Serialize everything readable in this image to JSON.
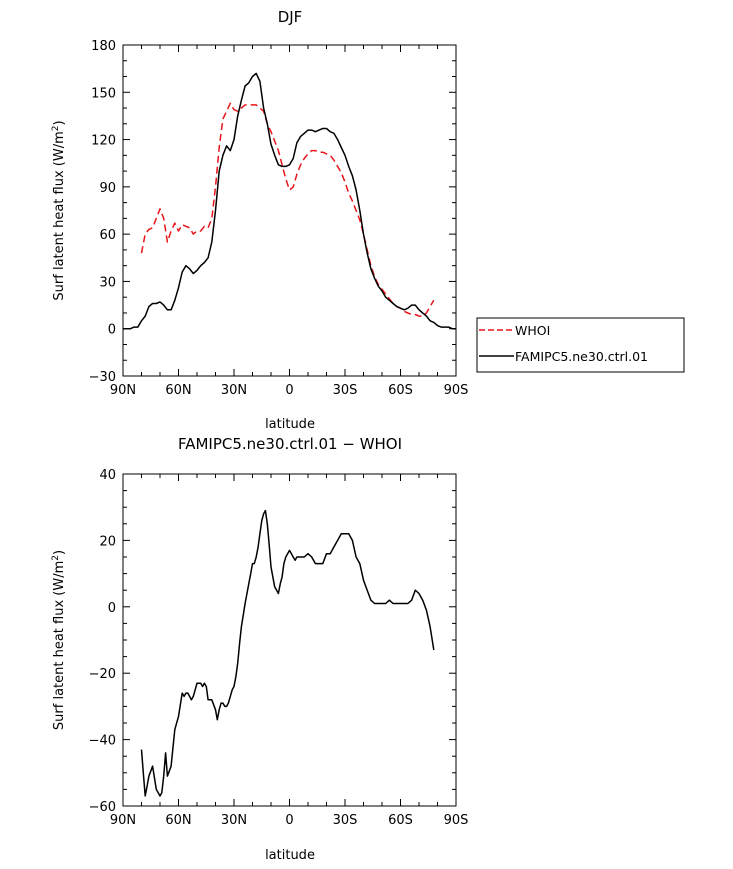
{
  "chart_data": [
    {
      "type": "line",
      "title": "DJF",
      "xlabel": "latitude",
      "ylabel": "Surf latent heat flux (W/m",
      "ylabel_sup": "2",
      "ylabel_close": ")",
      "xlim": [
        90,
        -90
      ],
      "ylim": [
        -30,
        180
      ],
      "xticks": [
        {
          "value": 90,
          "label": "90N"
        },
        {
          "value": 60,
          "label": "60N"
        },
        {
          "value": 30,
          "label": "30N"
        },
        {
          "value": 0,
          "label": "0"
        },
        {
          "value": -30,
          "label": "30S"
        },
        {
          "value": -60,
          "label": "60S"
        },
        {
          "value": -90,
          "label": "90S"
        }
      ],
      "yticks": [
        {
          "value": 180,
          "label": "180"
        },
        {
          "value": 150,
          "label": "150"
        },
        {
          "value": 120,
          "label": "120"
        },
        {
          "value": 90,
          "label": "90"
        },
        {
          "value": 60,
          "label": "60"
        },
        {
          "value": 30,
          "label": "30"
        },
        {
          "value": 0,
          "label": "0"
        },
        {
          "value": -30,
          "label": "−30"
        }
      ],
      "legend": {
        "placement": "right",
        "entries": [
          {
            "label": "WHOI",
            "color": "#e8151b",
            "dash": true
          },
          {
            "label": "FAMIPC5.ne30.ctrl.01",
            "color": "#000000",
            "dash": false
          }
        ]
      },
      "series": [
        {
          "name": "WHOI",
          "color": "#e8151b",
          "dash": true,
          "x": [
            80,
            78,
            76,
            74,
            72,
            70,
            68,
            66,
            64,
            62,
            60,
            58,
            56,
            54,
            52,
            50,
            48,
            46,
            44,
            42,
            40,
            38,
            36,
            34,
            32,
            30,
            28,
            26,
            24,
            22,
            20,
            18,
            16,
            14,
            12,
            10,
            8,
            6,
            4,
            2,
            0,
            -2,
            -4,
            -6,
            -8,
            -10,
            -12,
            -14,
            -16,
            -18,
            -20,
            -22,
            -24,
            -26,
            -28,
            -30,
            -32,
            -34,
            -36,
            -38,
            -40,
            -42,
            -44,
            -46,
            -48,
            -50,
            -52,
            -54,
            -56,
            -58,
            -60,
            -62,
            -64,
            -66,
            -68,
            -70,
            -72,
            -74,
            -76,
            -78
          ],
          "values": [
            48,
            60,
            63,
            64,
            70,
            76,
            70,
            55,
            62,
            67,
            62,
            66,
            65,
            64,
            60,
            62,
            62,
            65,
            64,
            70,
            90,
            115,
            133,
            138,
            143,
            139,
            138,
            140,
            142,
            142,
            142,
            142,
            140,
            138,
            130,
            125,
            119,
            113,
            104,
            95,
            88,
            90,
            98,
            104,
            108,
            111,
            113,
            113,
            112,
            112,
            111,
            110,
            107,
            103,
            99,
            93,
            86,
            81,
            75,
            69,
            60,
            50,
            40,
            33,
            28,
            25,
            22,
            19,
            16,
            14,
            13,
            11,
            10,
            9,
            9,
            8,
            8,
            10,
            14,
            18
          ]
        },
        {
          "name": "FAMIPC5.ne30.ctrl.01",
          "color": "#000000",
          "dash": false,
          "x": [
            90,
            88,
            86,
            84,
            82,
            80,
            78,
            76,
            74,
            72,
            70,
            68,
            66,
            64,
            62,
            60,
            58,
            56,
            54,
            52,
            50,
            48,
            46,
            44,
            42,
            40,
            38,
            36,
            34,
            32,
            30,
            28,
            26,
            24,
            22,
            20,
            18,
            16,
            14,
            12,
            10,
            8,
            6,
            4,
            2,
            0,
            -2,
            -4,
            -6,
            -8,
            -10,
            -12,
            -14,
            -16,
            -18,
            -20,
            -22,
            -24,
            -26,
            -28,
            -30,
            -32,
            -34,
            -36,
            -38,
            -40,
            -42,
            -44,
            -46,
            -48,
            -50,
            -52,
            -54,
            -56,
            -58,
            -60,
            -62,
            -64,
            -66,
            -68,
            -70,
            -72,
            -74,
            -76,
            -78,
            -80,
            -82,
            -84,
            -86,
            -88,
            -90
          ],
          "values": [
            0,
            0,
            0,
            1,
            1,
            5,
            8,
            14,
            16,
            16,
            17,
            15,
            12,
            12,
            18,
            26,
            36,
            40,
            38,
            35,
            37,
            40,
            42,
            45,
            55,
            75,
            100,
            110,
            116,
            113,
            120,
            135,
            145,
            154,
            156,
            160,
            162,
            157,
            140,
            130,
            117,
            110,
            104,
            103,
            103,
            104,
            108,
            118,
            122,
            124,
            126,
            126,
            125,
            126,
            127,
            127,
            125,
            124,
            120,
            115,
            110,
            103,
            97,
            88,
            75,
            60,
            48,
            38,
            32,
            27,
            24,
            20,
            18,
            16,
            14,
            13,
            12,
            13,
            15,
            15,
            12,
            10,
            8,
            5,
            4,
            2,
            1,
            1,
            1,
            0,
            0
          ]
        }
      ]
    },
    {
      "type": "line",
      "title": "FAMIPC5.ne30.ctrl.01 − WHOI",
      "xlabel": "latitude",
      "ylabel": "Surf latent heat flux (W/m",
      "ylabel_sup": "2",
      "ylabel_close": ")",
      "xlim": [
        90,
        -90
      ],
      "ylim": [
        -60,
        40
      ],
      "xticks": [
        {
          "value": 90,
          "label": "90N"
        },
        {
          "value": 60,
          "label": "60N"
        },
        {
          "value": 30,
          "label": "30N"
        },
        {
          "value": 0,
          "label": "0"
        },
        {
          "value": -30,
          "label": "30S"
        },
        {
          "value": -60,
          "label": "60S"
        },
        {
          "value": -90,
          "label": "90S"
        }
      ],
      "yticks": [
        {
          "value": 40,
          "label": "40"
        },
        {
          "value": 20,
          "label": "20"
        },
        {
          "value": 0,
          "label": "0"
        },
        {
          "value": -20,
          "label": "−20"
        },
        {
          "value": -40,
          "label": "−40"
        },
        {
          "value": -60,
          "label": "−60"
        }
      ],
      "series": [
        {
          "color": "#000000",
          "dash": false,
          "x": [
            80,
            79,
            78,
            77,
            76,
            74,
            72,
            71,
            70,
            69,
            68,
            67,
            66,
            64,
            62,
            60,
            58,
            57,
            56,
            55,
            54,
            53,
            52,
            50,
            48,
            47,
            46,
            45,
            44,
            43,
            42,
            40,
            39,
            38,
            37,
            36,
            35,
            34,
            33,
            32,
            31,
            30,
            29,
            28,
            27,
            26,
            24,
            22,
            21,
            20,
            19,
            18,
            17,
            16,
            15,
            14,
            13,
            12,
            11,
            10,
            8,
            7,
            6,
            5,
            4,
            3,
            2,
            0,
            -1,
            -2,
            -3,
            -4,
            -5,
            -6,
            -8,
            -10,
            -12,
            -14,
            -16,
            -18,
            -20,
            -22,
            -24,
            -26,
            -28,
            -30,
            -32,
            -34,
            -36,
            -38,
            -40,
            -42,
            -44,
            -46,
            -48,
            -50,
            -52,
            -54,
            -56,
            -58,
            -60,
            -62,
            -64,
            -66,
            -68,
            -70,
            -72,
            -74,
            -76,
            -78
          ],
          "values": [
            -43,
            -50,
            -57,
            -54,
            -51,
            -48,
            -55,
            -56,
            -57,
            -56,
            -51,
            -44,
            -51,
            -48,
            -37,
            -33,
            -26,
            -27,
            -26,
            -26,
            -27,
            -28,
            -27,
            -23,
            -23,
            -24,
            -23,
            -24,
            -28,
            -28,
            -28,
            -31,
            -34,
            -31,
            -29,
            -29,
            -30,
            -30,
            -29,
            -27,
            -25,
            -24,
            -21,
            -17,
            -11,
            -6,
            1,
            7,
            10,
            13,
            13,
            15,
            18,
            22,
            26,
            28,
            29,
            25,
            19,
            12,
            6,
            5,
            4,
            7,
            9,
            13,
            15,
            17,
            16,
            15,
            14,
            15,
            15,
            15,
            15,
            16,
            15,
            13,
            13,
            13,
            16,
            16,
            18,
            20,
            22,
            22,
            22,
            20,
            15,
            13,
            8,
            5,
            2,
            1,
            1,
            1,
            1,
            2,
            1,
            1,
            1,
            1,
            1,
            2,
            5,
            4,
            2,
            -1,
            -6,
            -13
          ]
        }
      ]
    }
  ]
}
